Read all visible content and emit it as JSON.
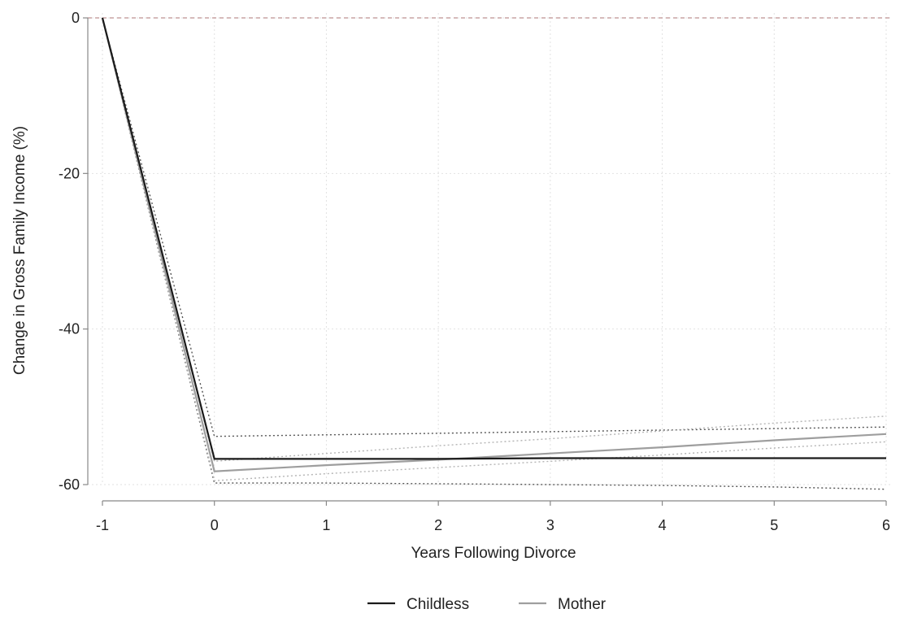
{
  "chart_data": {
    "type": "line",
    "title": "",
    "xlabel": "Years Following Divorce",
    "ylabel": "Change in Gross Family Income (%)",
    "xlim": [
      -1,
      6
    ],
    "ylim": [
      -60,
      0
    ],
    "x_ticks": [
      -1,
      0,
      1,
      2,
      3,
      4,
      5,
      6
    ],
    "y_ticks": [
      0,
      -20,
      -40,
      -60
    ],
    "reference_line": {
      "y": 0,
      "style": "dashed",
      "color": "#c9a3a3"
    },
    "grid": true,
    "legend": {
      "position": "bottom"
    },
    "x": [
      -1,
      0,
      1,
      2,
      3,
      4,
      5,
      6
    ],
    "series": [
      {
        "name": "Childless",
        "color": "#1a1a1a",
        "values": [
          0,
          -56.7,
          -56.7,
          -56.7,
          -56.6,
          -56.6,
          -56.6,
          -56.6
        ],
        "ci_lower": [
          0,
          -59.8,
          -59.8,
          -59.9,
          -60.0,
          -60.1,
          -60.3,
          -60.6
        ],
        "ci_upper": [
          0,
          -53.8,
          -53.6,
          -53.4,
          -53.2,
          -53.0,
          -52.8,
          -52.6
        ]
      },
      {
        "name": "Mother",
        "color": "#9e9e9e",
        "values": [
          0,
          -58.3,
          -57.5,
          -56.8,
          -56.0,
          -55.2,
          -54.3,
          -53.5
        ],
        "ci_lower": [
          0,
          -59.5,
          -58.6,
          -57.8,
          -57.0,
          -56.2,
          -55.3,
          -54.5
        ],
        "ci_upper": [
          0,
          -57.0,
          -56.0,
          -55.0,
          -54.1,
          -53.1,
          -52.1,
          -51.2
        ]
      }
    ]
  }
}
